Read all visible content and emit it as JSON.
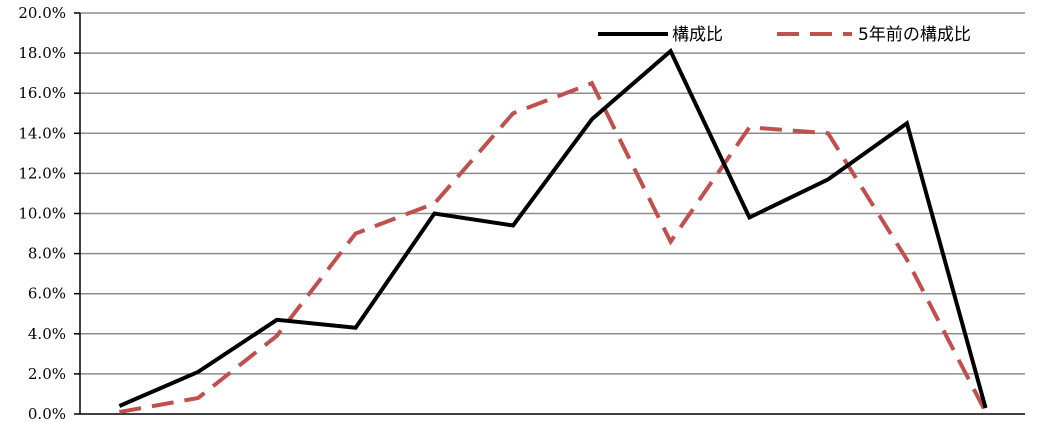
{
  "chart_data": {
    "type": "line",
    "x": [
      1,
      2,
      3,
      4,
      5,
      6,
      7,
      8,
      9,
      10,
      11,
      12
    ],
    "ylim": [
      0,
      20
    ],
    "y_ticks": [
      0,
      2,
      4,
      6,
      8,
      10,
      12,
      14,
      16,
      18,
      20
    ],
    "y_tick_labels": [
      "0.0%",
      "2.0%",
      "4.0%",
      "6.0%",
      "8.0%",
      "10.0%",
      "12.0%",
      "14.0%",
      "16.0%",
      "18.0%",
      "20.0%"
    ],
    "grid": true,
    "legend_position": "top-right",
    "series": [
      {
        "name": "構成比",
        "color": "#000000",
        "style": "solid",
        "values": [
          0.4,
          2.1,
          4.7,
          4.3,
          10.0,
          9.4,
          14.7,
          18.1,
          9.8,
          11.7,
          14.5,
          0.3
        ]
      },
      {
        "name": "5年前の構成比",
        "color": "#c0504d",
        "style": "dashed",
        "values": [
          0.1,
          0.8,
          3.9,
          9.0,
          10.5,
          15.0,
          16.5,
          8.6,
          14.3,
          14.0,
          7.7,
          0.1
        ]
      }
    ]
  }
}
